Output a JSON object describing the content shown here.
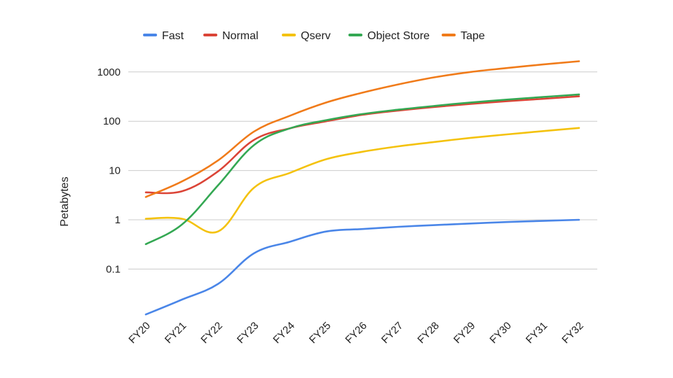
{
  "chart_data": {
    "type": "line",
    "title": "",
    "xlabel": "",
    "ylabel": "Petabytes",
    "yscale": "log",
    "ylim": [
      0.01,
      1000
    ],
    "yticks": [
      "0.1",
      "1",
      "10",
      "100",
      "1000"
    ],
    "grid": "horizontal",
    "legend_position": "top",
    "categories": [
      "FY20",
      "FY21",
      "FY22",
      "FY23",
      "FY24",
      "FY25",
      "FY26",
      "FY27",
      "FY28",
      "FY29",
      "FY30",
      "FY31",
      "FY32"
    ],
    "series": [
      {
        "name": "Fast",
        "color": "#4a86e8",
        "values": [
          0.012,
          0.024,
          0.05,
          0.21,
          0.36,
          0.58,
          0.65,
          0.72,
          0.78,
          0.84,
          0.9,
          0.95,
          1.0
        ]
      },
      {
        "name": "Normal",
        "color": "#db4437",
        "values": [
          3.6,
          3.8,
          9.6,
          42,
          72,
          100,
          135,
          165,
          195,
          225,
          255,
          285,
          320
        ]
      },
      {
        "name": "Qserv",
        "color": "#f4c20d",
        "values": [
          1.05,
          1.05,
          0.58,
          4.5,
          9.0,
          17,
          24,
          31,
          38,
          46,
          54,
          63,
          73
        ]
      },
      {
        "name": "Object Store",
        "color": "#34a853",
        "values": [
          0.32,
          0.8,
          5.0,
          33,
          72,
          105,
          140,
          172,
          205,
          240,
          275,
          310,
          350
        ]
      },
      {
        "name": "Tape",
        "color": "#f07b1a",
        "values": [
          2.9,
          6.0,
          16,
          62,
          130,
          240,
          380,
          560,
          780,
          1000,
          1200,
          1420,
          1650
        ]
      }
    ]
  }
}
